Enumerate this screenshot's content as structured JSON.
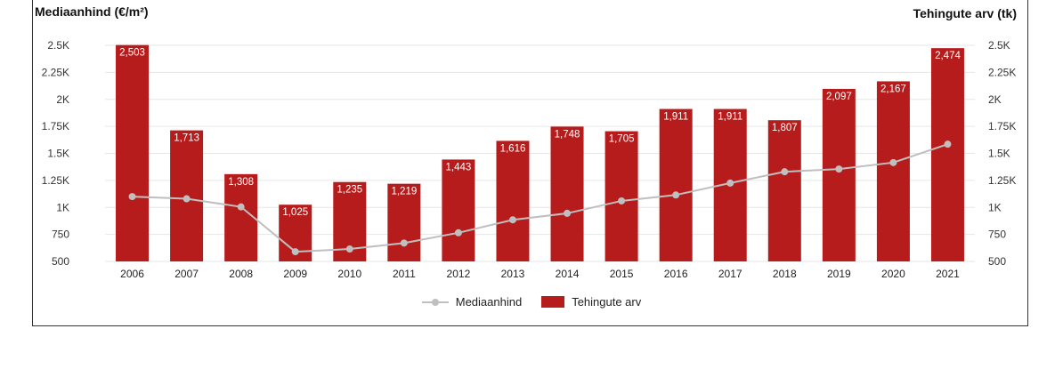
{
  "titles": {
    "left": "Mediaanhind (€/m²)",
    "right": "Tehingute arv (tk)"
  },
  "legend": {
    "line_label": "Mediaanhind",
    "bar_label": "Tehingute arv"
  },
  "colors": {
    "bar": "#b71c1c",
    "line": "#bfbfbf",
    "grid": "#e6e6e6"
  },
  "chart_data": {
    "type": "bar",
    "categories": [
      "2006",
      "2007",
      "2008",
      "2009",
      "2010",
      "2011",
      "2012",
      "2013",
      "2014",
      "2015",
      "2016",
      "2017",
      "2018",
      "2019",
      "2020",
      "2021"
    ],
    "series": [
      {
        "name": "Tehingute arv",
        "type": "bar",
        "axis": "right",
        "values": [
          2503,
          1713,
          1308,
          1025,
          1235,
          1219,
          1443,
          1616,
          1748,
          1705,
          1911,
          1911,
          1807,
          2097,
          2167,
          2474
        ],
        "labels": [
          "2,503",
          "1,713",
          "1,308",
          "1,025",
          "1,235",
          "1,219",
          "1,443",
          "1,616",
          "1,748",
          "1,705",
          "1,911",
          "1,911",
          "1,807",
          "2,097",
          "2,167",
          "2,474"
        ]
      },
      {
        "name": "Mediaanhind",
        "type": "line",
        "axis": "left",
        "values": [
          1100,
          1080,
          1005,
          590,
          615,
          670,
          765,
          885,
          945,
          1060,
          1115,
          1225,
          1330,
          1355,
          1415,
          1585
        ]
      }
    ],
    "ylabel_left": "Mediaanhind (€/m²)",
    "ylabel_right": "Tehingute arv (tk)",
    "ylim_left": [
      500,
      2500
    ],
    "ylim_right": [
      500,
      2500
    ],
    "yticks": [
      "2.5K",
      "2.25K",
      "2K",
      "1.75K",
      "1.5K",
      "1.25K",
      "1K",
      "750",
      "500"
    ],
    "ytick_values": [
      2500,
      2250,
      2000,
      1750,
      1500,
      1250,
      1000,
      750,
      500
    ],
    "grid": true,
    "legend_position": "bottom"
  }
}
